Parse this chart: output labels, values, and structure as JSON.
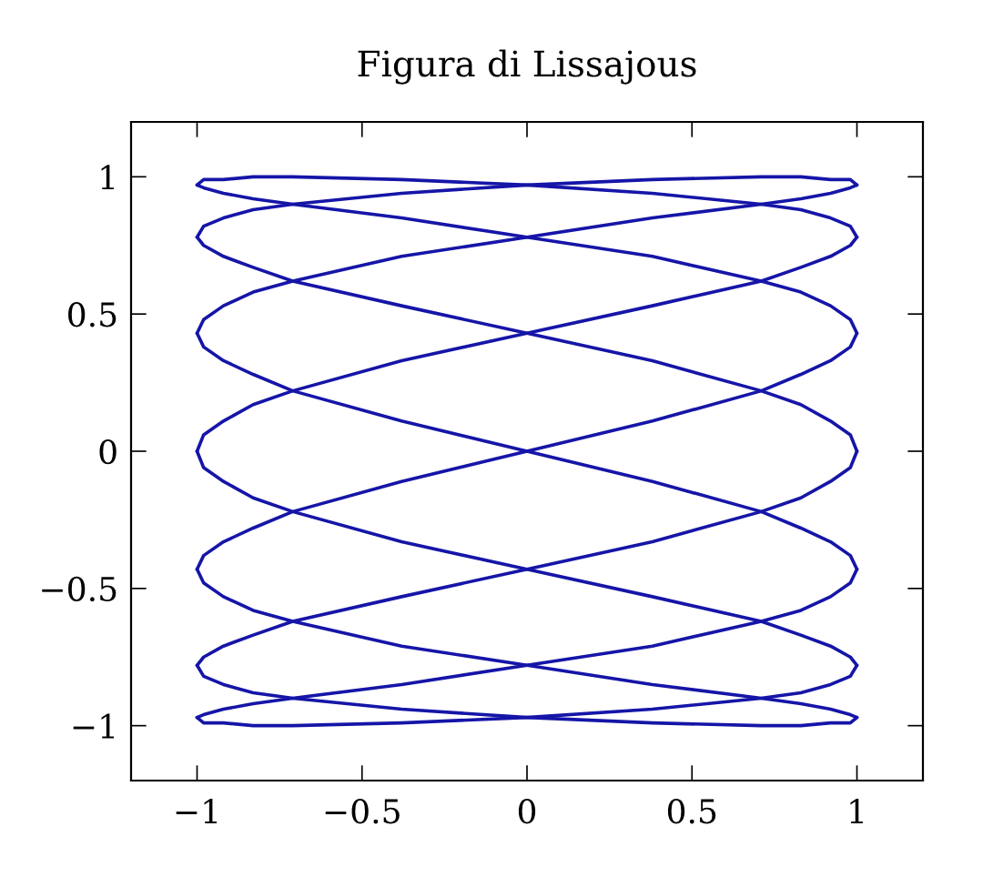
{
  "chart_data": {
    "type": "line",
    "title": "Figura di Lissajous",
    "series": [
      {
        "color": "#1515a8",
        "x": [
          1,
          0.98,
          0.92,
          0.83,
          0.71,
          0.38,
          0,
          -0.38,
          -0.71,
          -0.83,
          -0.92,
          -0.98,
          -1
        ],
        "values": [
          0,
          0.06,
          0.11,
          0.17,
          0.22,
          0.33,
          0.43,
          0.53,
          0.62,
          0.67,
          0.71,
          0.75,
          0.78
        ]
      },
      {
        "color": "#1515a8",
        "x": [
          -1,
          -0.98,
          -0.92,
          -0.83,
          -0.71,
          -0.38,
          0,
          0.38,
          0.71,
          0.83,
          0.92,
          0.98,
          1
        ],
        "values": [
          0.78,
          0.82,
          0.85,
          0.88,
          0.9,
          0.94,
          0.97,
          0.99,
          1,
          1,
          0.99,
          0.99,
          0.97
        ]
      },
      {
        "color": "#1515a8",
        "x": [
          1,
          0.98,
          0.92,
          0.83,
          0.71,
          0.38,
          0,
          -0.38,
          -0.71,
          -0.83,
          -0.92,
          -0.98,
          -1
        ],
        "values": [
          0.97,
          0.96,
          0.94,
          0.92,
          0.9,
          0.85,
          0.78,
          0.71,
          0.62,
          0.58,
          0.53,
          0.48,
          0.43
        ]
      },
      {
        "color": "#1515a8",
        "x": [
          -1,
          -0.98,
          -0.92,
          -0.83,
          -0.71,
          -0.38,
          0,
          0.38,
          0.71,
          0.83,
          0.92,
          0.98,
          1
        ],
        "values": [
          0.43,
          0.38,
          0.33,
          0.28,
          0.22,
          0.11,
          0,
          -0.11,
          -0.22,
          -0.28,
          -0.33,
          -0.38,
          -0.43
        ]
      },
      {
        "color": "#1515a8",
        "x": [
          1,
          0.98,
          0.92,
          0.83,
          0.71,
          0.38,
          0,
          -0.38,
          -0.71,
          -0.83,
          -0.92,
          -0.98,
          -1
        ],
        "values": [
          -0.43,
          -0.48,
          -0.53,
          -0.58,
          -0.62,
          -0.71,
          -0.78,
          -0.85,
          -0.9,
          -0.92,
          -0.94,
          -0.96,
          -0.97
        ]
      },
      {
        "color": "#1515a8",
        "x": [
          -1,
          -0.98,
          -0.92,
          -0.83,
          -0.71,
          -0.38,
          0,
          0.38,
          0.71,
          0.83,
          0.92,
          0.98,
          1
        ],
        "values": [
          -0.97,
          -0.99,
          -0.99,
          -1,
          -1,
          -0.99,
          -0.97,
          -0.94,
          -0.9,
          -0.88,
          -0.85,
          -0.82,
          -0.78
        ]
      },
      {
        "color": "#1515a8",
        "x": [
          1,
          0.98,
          0.92,
          0.83,
          0.71,
          0.38,
          0,
          -0.38,
          -0.71,
          -0.83,
          -0.92,
          -0.98,
          -1
        ],
        "values": [
          -0.78,
          -0.75,
          -0.71,
          -0.67,
          -0.62,
          -0.53,
          -0.43,
          -0.33,
          -0.22,
          -0.17,
          -0.11,
          -0.06,
          0
        ]
      },
      {
        "color": "#1515a8",
        "x": [
          -1,
          -0.98,
          -0.92,
          -0.83,
          -0.71,
          -0.38,
          0,
          0.38,
          0.71,
          0.83,
          0.92,
          0.98,
          1
        ],
        "values": [
          0,
          0.06,
          0.11,
          0.17,
          0.22,
          0.33,
          0.43,
          0.53,
          0.62,
          0.67,
          0.71,
          0.75,
          0.78
        ]
      },
      {
        "color": "#1515a8",
        "x": [
          1,
          0.98,
          0.92,
          0.83,
          0.71,
          0.38,
          0,
          -0.38,
          -0.71,
          -0.83,
          -0.92,
          -0.98,
          -1
        ],
        "values": [
          0.78,
          0.82,
          0.85,
          0.88,
          0.9,
          0.94,
          0.97,
          0.99,
          1,
          1,
          0.99,
          0.99,
          0.97
        ]
      },
      {
        "color": "#1515a8",
        "x": [
          -1,
          -0.98,
          -0.92,
          -0.83,
          -0.71,
          -0.38,
          0,
          0.38,
          0.71,
          0.83,
          0.92,
          0.98,
          1
        ],
        "values": [
          0.97,
          0.96,
          0.94,
          0.92,
          0.9,
          0.85,
          0.78,
          0.71,
          0.62,
          0.58,
          0.53,
          0.48,
          0.43
        ]
      },
      {
        "color": "#1515a8",
        "x": [
          1,
          0.98,
          0.92,
          0.83,
          0.71,
          0.38,
          0,
          -0.38,
          -0.71,
          -0.83,
          -0.92,
          -0.98,
          -1
        ],
        "values": [
          0.43,
          0.38,
          0.33,
          0.28,
          0.22,
          0.11,
          0,
          -0.11,
          -0.22,
          -0.28,
          -0.33,
          -0.38,
          -0.43
        ]
      },
      {
        "color": "#1515a8",
        "x": [
          -1,
          -0.98,
          -0.92,
          -0.83,
          -0.71,
          -0.38,
          0,
          0.38,
          0.71,
          0.83,
          0.92,
          0.98,
          1
        ],
        "values": [
          -0.43,
          -0.48,
          -0.53,
          -0.58,
          -0.62,
          -0.71,
          -0.78,
          -0.85,
          -0.9,
          -0.92,
          -0.94,
          -0.96,
          -0.97
        ]
      },
      {
        "color": "#1515a8",
        "x": [
          1,
          0.98,
          0.92,
          0.83,
          0.71,
          0.38,
          0,
          -0.38,
          -0.71,
          -0.83,
          -0.92,
          -0.98,
          -1
        ],
        "values": [
          -0.97,
          -0.99,
          -0.99,
          -1,
          -1,
          -0.99,
          -0.97,
          -0.94,
          -0.9,
          -0.88,
          -0.85,
          -0.82,
          -0.78
        ]
      },
      {
        "color": "#1515a8",
        "x": [
          -1,
          -0.98,
          -0.92,
          -0.83,
          -0.71,
          -0.38,
          0,
          0.38,
          0.71,
          0.83,
          0.92,
          0.98,
          1
        ],
        "values": [
          -0.78,
          -0.75,
          -0.71,
          -0.67,
          -0.62,
          -0.53,
          -0.43,
          -0.33,
          -0.22,
          -0.17,
          -0.11,
          -0.06,
          0
        ]
      }
    ],
    "xlim": [
      -1.2,
      1.2
    ],
    "ylim": [
      -1.2,
      1.2
    ],
    "xticks": [
      {
        "value": -1,
        "label": "−1"
      },
      {
        "value": -0.5,
        "label": "−0.5"
      },
      0,
      0.5,
      1
    ],
    "yticks": [
      {
        "value": -1,
        "label": "−1"
      },
      {
        "value": -0.5,
        "label": "−0.5"
      },
      0,
      0.5,
      1
    ],
    "grid": false,
    "marker": "none",
    "line_style": "solid"
  }
}
